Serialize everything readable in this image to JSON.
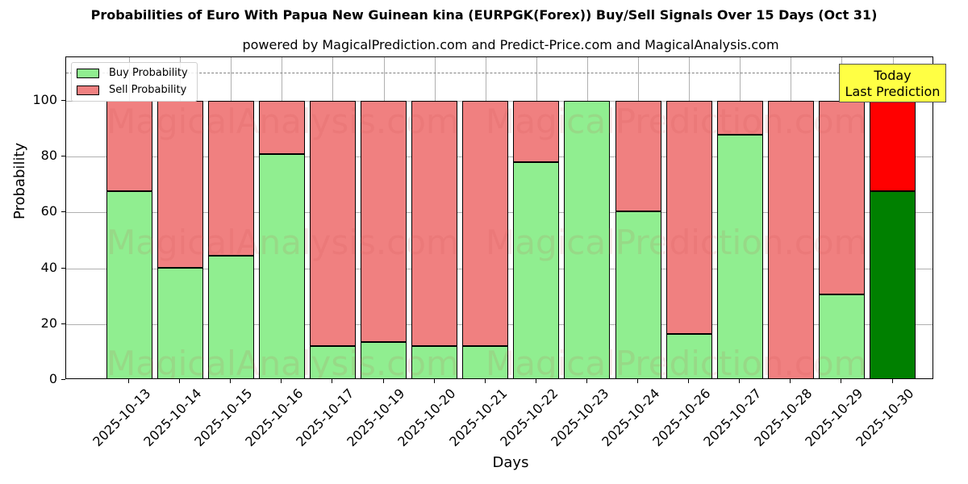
{
  "title": "Probabilities of Euro With Papua New Guinean kina (EURPGK(Forex)) Buy/Sell Signals Over 15 Days (Oct 31)",
  "subtitle": "powered by MagicalPrediction.com and Predict-Price.com and MagicalAnalysis.com",
  "annotation": {
    "line1": "Today",
    "line2": "Last Prediction"
  },
  "watermarks": [
    "MagicalAnalysis.com",
    "MagicalPrediction.com"
  ],
  "colors": {
    "buy": "#90ee90",
    "sell": "#f08080",
    "today_buy": "#008000",
    "today_sell": "#ff0000",
    "annotation_bg": "#ffff44"
  },
  "chart_data": {
    "type": "bar",
    "stacked": true,
    "title": "Probabilities of Euro With Papua New Guinean kina (EURPGK(Forex)) Buy/Sell Signals Over 15 Days (Oct 31)",
    "subtitle": "powered by MagicalPrediction.com and Predict-Price.com and MagicalAnalysis.com",
    "xlabel": "Days",
    "ylabel": "Probability",
    "ylim": [
      0,
      115
    ],
    "yticks": [
      0,
      20,
      40,
      60,
      80,
      100
    ],
    "grid": true,
    "legend_position": "upper left",
    "reference_line": {
      "y": 110,
      "style": "dashed"
    },
    "categories": [
      "2025-10-13",
      "2025-10-14",
      "2025-10-15",
      "2025-10-16",
      "2025-10-17",
      "2025-10-19",
      "2025-10-20",
      "2025-10-21",
      "2025-10-22",
      "2025-10-23",
      "2025-10-24",
      "2025-10-26",
      "2025-10-27",
      "2025-10-28",
      "2025-10-29",
      "2025-10-30"
    ],
    "series": [
      {
        "name": "Buy Probability",
        "values": [
          67.6,
          40.2,
          44.5,
          80.9,
          12.1,
          13.6,
          12.1,
          12.1,
          78.0,
          100.0,
          60.4,
          16.5,
          87.9,
          0.0,
          30.6,
          67.6
        ]
      },
      {
        "name": "Sell Probability",
        "values": [
          32.4,
          59.8,
          55.5,
          19.1,
          87.9,
          86.4,
          87.9,
          87.9,
          22.0,
          0.0,
          39.6,
          83.5,
          12.1,
          100.0,
          69.4,
          32.4
        ]
      }
    ],
    "highlighted_category": "2025-10-30",
    "annotations": [
      "Today\nLast Prediction"
    ]
  }
}
